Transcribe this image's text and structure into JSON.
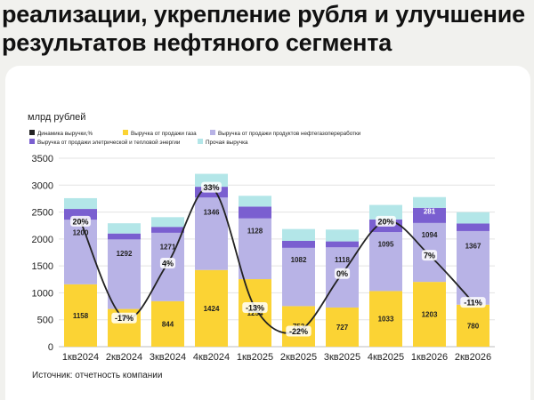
{
  "headline": {
    "line1": "реализации, укрепление рубля и улучшение",
    "line2": "результатов нефтяного сегмента"
  },
  "source": "Источник: отчетность компании",
  "chart_data": {
    "type": "bar",
    "stacked": true,
    "ylabel": "млрд рублей",
    "ylim": [
      0,
      3500
    ],
    "yticks": [
      0,
      500,
      1000,
      1500,
      2000,
      2500,
      3000,
      3500
    ],
    "grid": true,
    "legend_position": "top-left",
    "categories": [
      "1кв2024",
      "2кв2024",
      "3кв2024",
      "4кв2024",
      "1кв2025",
      "2кв2025",
      "3кв2025",
      "4кв2025",
      "1кв2026",
      "2кв2026"
    ],
    "series": [
      {
        "name": "Выручка от продажи газа",
        "color": "#fbd334",
        "values": [
          1158,
          700,
          844,
          1424,
          1254,
          753,
          727,
          1033,
          1203,
          780
        ],
        "labels": [
          "1158",
          "",
          "844",
          "1424",
          "1254",
          "753",
          "727",
          "1033",
          "1203",
          "780"
        ]
      },
      {
        "name": "Выручка от продажи продуктов нефтегазопереработки",
        "color": "#b8b3e6",
        "values": [
          1200,
          1292,
          1271,
          1346,
          1128,
          1082,
          1118,
          1095,
          1094,
          1367
        ],
        "labels": [
          "1200",
          "1292",
          "1271",
          "1346",
          "1128",
          "1082",
          "1118",
          "1095",
          "1094",
          "1367"
        ]
      },
      {
        "name": "Выручка от продажи элетрической и тепловой энергии",
        "color": "#7a5fd0",
        "values": [
          200,
          110,
          110,
          200,
          220,
          130,
          110,
          234,
          281,
          140
        ],
        "labels": [
          "",
          "",
          "",
          "",
          "",
          "",
          "",
          "234",
          "281",
          ""
        ]
      },
      {
        "name": "Прочая выручка",
        "color": "#b3e6e8",
        "values": [
          200,
          190,
          180,
          240,
          200,
          220,
          220,
          270,
          200,
          210
        ],
        "labels": [
          "",
          "",
          "",
          "",
          "",
          "",
          "",
          "",
          "",
          ""
        ]
      }
    ],
    "line": {
      "name": "Динамика выручки,%",
      "color": "#222222",
      "values": [
        20,
        -17,
        4,
        33,
        -13,
        -22,
        0,
        20,
        7,
        -11
      ],
      "labels": [
        "20%",
        "-17%",
        "4%",
        "33%",
        "-13%",
        "-22%",
        "0%",
        "20%",
        "7%",
        "-11%"
      ]
    },
    "legend": [
      "Динамика выручки,%",
      "Выручка от продажи газа",
      "Выручка от продажи продуктов нефтегазопереработки",
      "Выручка от продажи элетрической и тепловой энергии",
      "Прочая выручка"
    ],
    "legend_colors": [
      "#222222",
      "#fbd334",
      "#b8b3e6",
      "#7a5fd0",
      "#b3e6e8"
    ]
  }
}
